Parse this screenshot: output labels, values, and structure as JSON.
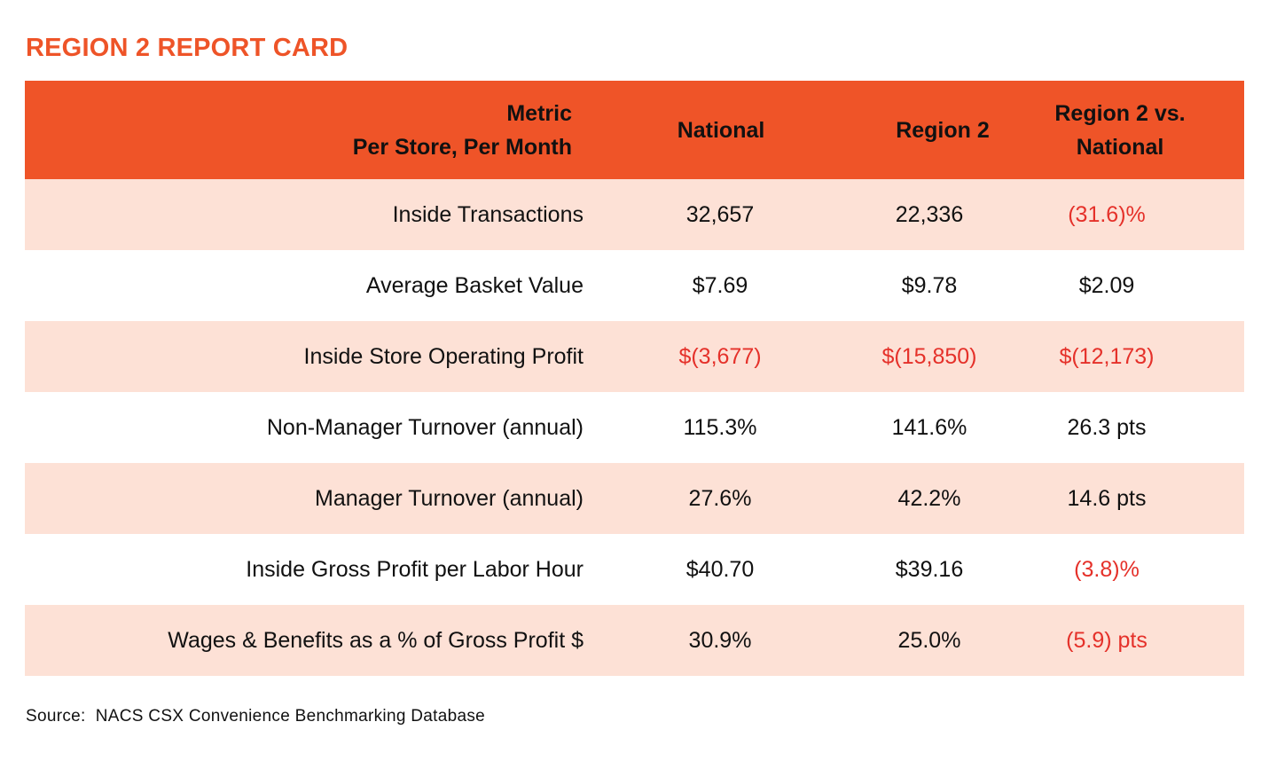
{
  "title": "REGION 2 REPORT CARD",
  "chart_data": {
    "type": "table",
    "columns": {
      "metric_line1": "Metric",
      "metric_line2": "Per Store, Per Month",
      "national": "National",
      "region": "Region 2",
      "diff_line1": "Region 2 vs.",
      "diff_line2": "National"
    },
    "rows": [
      {
        "metric": "Inside Transactions",
        "national": "32,657",
        "region": "22,336",
        "diff": "(31.6)%"
      },
      {
        "metric": "Average Basket Value",
        "national": "$7.69",
        "region": "$9.78",
        "diff": "$2.09"
      },
      {
        "metric": "Inside Store Operating Profit",
        "national": "$(3,677)",
        "region": "$(15,850)",
        "diff": "$(12,173)"
      },
      {
        "metric": "Non-Manager Turnover (annual)",
        "national": "115.3%",
        "region": "141.6%",
        "diff": "26.3 pts"
      },
      {
        "metric": "Manager Turnover (annual)",
        "national": "27.6%",
        "region": "42.2%",
        "diff": "14.6 pts"
      },
      {
        "metric": "Inside Gross Profit per Labor Hour",
        "national": "$40.70",
        "region": "$39.16",
        "diff": "(3.8)%"
      },
      {
        "metric": "Wages & Benefits as a % of Gross Profit $",
        "national": "30.9%",
        "region": "25.0%",
        "diff": "(5.9) pts"
      }
    ]
  },
  "source": "Source:  NACS CSX Convenience Benchmarking Database",
  "colors": {
    "accent": "#ef5428",
    "row_shade": "#fde1d6",
    "negative": "#e5312a"
  }
}
